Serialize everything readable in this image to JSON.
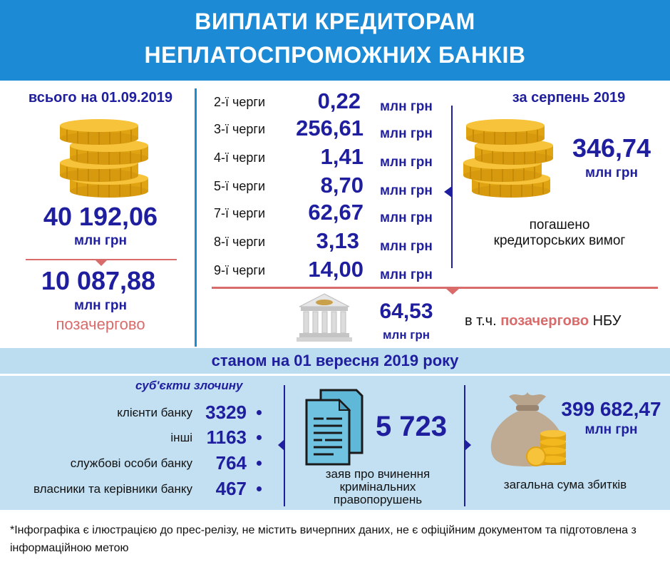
{
  "header": {
    "title_line1": "ВИПЛАТИ КРЕДИТОРАМ",
    "title_line2": "НЕПЛАТОСПРОМОЖНИХ БАНКІВ"
  },
  "total": {
    "heading": "всього на 01.09.2019",
    "amount": "40 192,06",
    "unit": "млн грн",
    "priority_amount": "10 087,88",
    "priority_unit": "млн грн",
    "priority_label": "позачергово"
  },
  "queues": [
    {
      "label": "2-ї черги",
      "value": "0,22",
      "unit": "млн грн"
    },
    {
      "label": "3-ї черги",
      "value": "256,61",
      "unit": "млн грн"
    },
    {
      "label": "4-ї черги",
      "value": "1,41",
      "unit": "млн грн"
    },
    {
      "label": "5-ї черги",
      "value": "8,70",
      "unit": "млн грн"
    },
    {
      "label": "7-ї черги",
      "value": "62,67",
      "unit": "млн грн"
    },
    {
      "label": "8-ї черги",
      "value": "3,13",
      "unit": "млн грн"
    },
    {
      "label": "9-ї черги",
      "value": "14,00",
      "unit": "млн грн"
    }
  ],
  "august": {
    "heading": "за серпень 2019",
    "amount": "346,74",
    "unit": "млн грн",
    "caption_line1": "погашено",
    "caption_line2": "кредиторських вимог"
  },
  "nbu": {
    "amount": "64,53",
    "unit": "млн грн",
    "prefix": "в т.ч. ",
    "highlight": "позачергово",
    "suffix": " НБУ"
  },
  "status_band": {
    "title": "станом на 01 вересня 2019 року"
  },
  "subjects": {
    "heading": "суб'єкти злочину",
    "items": [
      {
        "label": "клієнти банку",
        "value": "3329"
      },
      {
        "label": "інші",
        "value": "1163"
      },
      {
        "label": "службові особи банку",
        "value": "764"
      },
      {
        "label": "власники та керівники банку",
        "value": "467"
      }
    ]
  },
  "reports": {
    "count": "5 723",
    "caption_line1": "заяв про вчинення",
    "caption_line2": "кримінальних",
    "caption_line3": "правопорушень"
  },
  "losses": {
    "amount": "399 682,47",
    "unit": "млн грн",
    "caption": "загальна сума збитків"
  },
  "footnote": {
    "text": "*Інфографіка є ілюстрацією до прес-релізу, не містить вичерпних даних, не є офіційним документом та підготовлена з інформаційною метою"
  },
  "colors": {
    "header_bg": "#1c8ad4",
    "navy": "#1e1e9e",
    "accent_red": "#d96b6b",
    "band_bg": "#c3e0f2",
    "coin_gold": "#f2b81e"
  },
  "icons": [
    "coin-stack-icon",
    "bank-building-icon",
    "documents-icon",
    "money-bag-icon"
  ]
}
